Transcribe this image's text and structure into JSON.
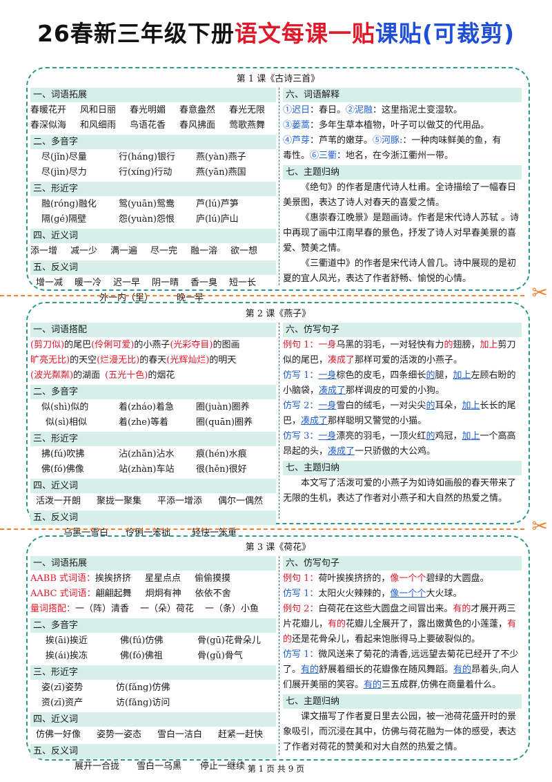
{
  "title": {
    "p1": "26春新三年级下册",
    "p2": "语文每课一贴",
    "p3": "课贴(可裁剪)"
  },
  "lesson1": {
    "title": "第 1 课《古诗三首》",
    "h1": "一、词语拓展",
    "w1": [
      "春暖花开",
      "风和日丽",
      "春光明媚",
      "春意盎然",
      "春光无限"
    ],
    "w2": [
      "春深似海",
      "和风细雨",
      "鸟语花香",
      "春风拂面",
      "莺歌燕舞"
    ],
    "h2": "二、多音字",
    "p1": [
      "尽(jǐn)尽量",
      "行(háng)银行",
      "燕(yàn)燕子"
    ],
    "p2": [
      "尽(jìn)尽力",
      "行(xíng)行动",
      "燕(yān)燕国"
    ],
    "h3": "三、形近字",
    "s1": [
      "融(róng)融化",
      "鸳(yuān)鸳鸯",
      "芦(lú)芦笋"
    ],
    "s2": [
      "隔(gé)隔壁",
      "怨(yuàn)怨恨",
      "庐(lú)庐山"
    ],
    "h4": "四、近义词",
    "syn": [
      "添一增",
      "减一少",
      "满一遍",
      "尽一完",
      "融一溶",
      "欲一想"
    ],
    "h5": "五、反义词",
    "ant1": [
      "增一减",
      "暖一冷",
      "迟一早",
      "阴一晴",
      "香一臭",
      "短一长"
    ],
    "ant2": [
      "外一内（里）",
      "晚一早"
    ],
    "h6": "六、词语解释",
    "e1a": "①迟日",
    "e1b": "：春日。",
    "e1c": "②泥融",
    "e1d": "：这里指泥土变湿软。",
    "e2a": "③蒌蒿",
    "e2b": "：多年生草本植物，叶子可以做艾的代用品。",
    "e3a": "④芦芽",
    "e3b": "：芦苇的嫩芽。",
    "e3c": "⑤河豚:",
    "e3d": "：一种肉味鲜美的鱼，有",
    "e4a": "毒性。",
    "e4b": "⑥三衢",
    "e4c": "：地名，在今浙江衢州一带。",
    "h7": "七、主题归纳",
    "t1": "《绝句》的作者是唐代诗人杜甫。全诗描绘了一幅春日美景图，表达了诗人对春天的喜爱之情。",
    "t2": "《惠崇春江晚景》是题画诗。作者是宋代诗人苏轼 。诗中再现了画中江南早春的景色，抒发了诗人对早春美景的喜爱、赞美之情。",
    "t3": "《三衢道中》的作者是宋代诗人曾几。诗中展现的是初夏的宜人风光，表达了作者舒畅、愉悦的心情。"
  },
  "lesson2": {
    "title": "第 2 课《燕子》",
    "h1": "一、词语搭配",
    "m1a": "(剪刀似)",
    "m1b": "的尾巴 ",
    "m1c": "(伶俐可爱)",
    "m1d": "的小燕子 ",
    "m1e": "(光彩夺目)",
    "m1f": "的图画",
    "m2a": "旷亮无比)",
    "m2b": "的天空 ",
    "m2c": "(烂漫无比)",
    "m2d": "的春天 ",
    "m2e": "(光辉灿烂)",
    "m2f": "的明天",
    "m3a": "(波光粼粼)",
    "m3b": "的湖面",
    "m3c": "(五光十色)",
    "m3d": "的烟花",
    "h2": "二、多音字",
    "p1": [
      "似(shì)似的",
      "着(zháo)着急",
      "圈(juàn)圈养"
    ],
    "p2": [
      "似(sì)相似",
      "着(zhe)等着",
      "圈(quān)圈养"
    ],
    "h3": "三、形近字",
    "s1": [
      "拂(fú)吹拂",
      "沾(zhān)沾水",
      "痕(hén)水痕"
    ],
    "s2": [
      "佛(fó)佛像",
      "站(zhàn)车站",
      "很(hěn)很好"
    ],
    "h4": "四、近义词",
    "syn": [
      "活泼一开朗",
      "聚拢一聚集",
      "平添一增添",
      "偶尔一偶然"
    ],
    "h5": "五、反义词",
    "ant": [
      "乌黑一雪白",
      "伶俐一笨拙",
      "轻快一笨重"
    ],
    "h6": "六、仿写句子",
    "ex1": "例句 1：",
    "ex1a": "一身",
    "ex1b": "乌黑的羽毛，一对轻快有力",
    "ex1c": "的",
    "ex1d": "翅膀，",
    "ex1e": "加上",
    "ex1f": "剪刀似的尾巴，",
    "ex1g": "凑成了",
    "ex1h": "那样可爱的活泼的小燕子。",
    "f1": "仿写 1：",
    "f1a": "一身",
    "f1b": "棕色的皮毛，四条细长",
    "f1c": "的",
    "f1d": "腿，",
    "f1e": "加上",
    "f1f": "左顾右盼的小脑袋，",
    "f1g": "凑成了",
    "f1h": "那样调皮的可爱的小狗。",
    "f2": "仿写 2：",
    "f2a": "一身",
    "f2b": "雪白的绒毛，一对尖尖",
    "f2c": "的",
    "f2d": "耳朵，",
    "f2e": "加上",
    "f2f": "长长的尾巴，",
    "f2g": "凑成了",
    "f2h": "那样聪明又警觉的小猫。",
    "f3": "仿写 3：",
    "f3a": "一身",
    "f3b": "漂亮的羽毛，一顶火红",
    "f3c": "的",
    "f3d": "鸡冠，",
    "f3e": "加上",
    "f3f": "一个高高昂起的头，",
    "f3g": "凑成了",
    "f3h": "一只骄傲的大公鸡。",
    "h7": "七、主题归纳",
    "t1": "本文写了活泼可爱的小燕子为如诗如画般的春天带来了无限的生机，表达了作者对小燕子和大自然的热爱之情。"
  },
  "lesson3": {
    "title": "第 3 课《荷花》",
    "h1": "一、词语拓展",
    "aabb": "AABB 式词语：",
    "aabbw": [
      "挨挨挤挤",
      "星星点点",
      "偷偷摸摸"
    ],
    "aabc": "AABC 式词语：",
    "aabcw": [
      "翩翩起舞",
      "炯炯有神",
      "依依不舍"
    ],
    "lc": "量词搭配：",
    "lcw": [
      "一（阵）清香",
      "一（朵）荷花",
      "一（条）小鱼"
    ],
    "h2": "二、多音字",
    "p1": [
      "挨(āi)挨近",
      "佛(fú)仿佛",
      "骨(gū)花骨朵儿"
    ],
    "p2": [
      "挨(ái)挨冻",
      "佛(fó)佛祖",
      "骨(gǔ)骨气"
    ],
    "h3": "三、形近字",
    "s1": [
      "姿(zī)姿势",
      "仿(fǎng)仿佛"
    ],
    "s2": [
      "资(zī)资产",
      "访(fǎng)访问"
    ],
    "h4": "四、近义词",
    "syn": [
      "仿佛一好像",
      "姿势一姿态",
      "雪白一洁白",
      "赶紧一赶快"
    ],
    "h5": "五、反义词",
    "ant": [
      "展开一合拢",
      "雪白一乌黑",
      "停止一继续"
    ],
    "h6": "六、仿写句子",
    "ex1": "例句 1：",
    "ex1a": "荷叶挨挨挤挤的，",
    "ex1b": "像一个个",
    "ex1c": "碧绿的大圆盘。",
    "f1": "仿写 1：",
    "f1a": "太阳火火辣辣的，",
    "f1b": "像一个个",
    "f1c": "大火球。",
    "ex2": "例句 2：",
    "ex2a": "白荷花在这些大圆盘之间冒出来。",
    "ex2b": "有的",
    "ex2c": "才展开两三片花瓣儿，",
    "ex2d": "有的",
    "ex2e": "花瓣儿全展开了，露出嫩黄色的小莲蓬，",
    "ex2f": "有的",
    "ex2g": "还是花骨朵儿，看起来饱胀得马上要破裂似的。",
    "f2": "仿写 1：",
    "f2a": "微风送来了菊花的清香,远远望去菊花已经开了不少了。",
    "f2b": "有的",
    "f2c": "舒展着细长的花瓣像在随风舞蹈。",
    "f2d": "有的",
    "f2e": "昂着头,向人们展开美丽的笑容。",
    "f2f": "有的",
    "f2g": "三五成群,仿佛在商量着什么。",
    "h7": "七、主题归纳",
    "t1": "课文描写了作者夏日里去公园，被一池荷花盛开时的景象吸引，而沉浸在其中，仿佛与荷花融为一体的感受，表达了作者对荷花的赞美和对大自然的热爱之情。"
  },
  "footer": "第 1 页 共 9 页",
  "colors": {
    "accent_red": "#e0192a",
    "accent_blue": "#1f5fd6",
    "head_bg": "#d6efe9",
    "border": "#2a9a8a",
    "cut": "#f08030"
  },
  "icons": [
    "scissors-icon"
  ]
}
